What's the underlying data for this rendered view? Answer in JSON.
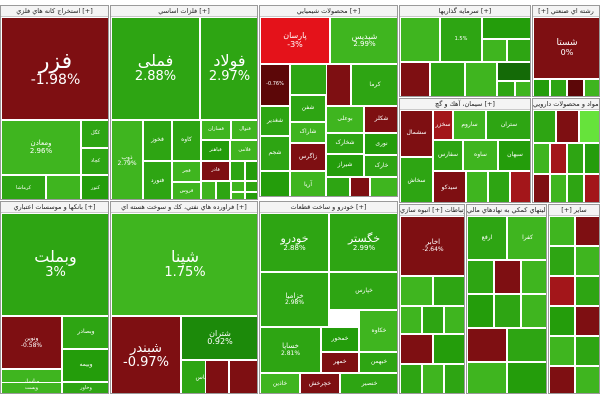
{
  "colors": {
    "light_green": "#3fb51f",
    "green": "#249d0b",
    "dark_green": "#146a07",
    "bright_green": "#66e33b",
    "dark_red": "#7e0f12",
    "red": "#a3161a",
    "bright_red": "#e4121a",
    "border": "#9a9a9a",
    "header_bg": "#f4f4f4"
  },
  "sectors": [
    {
      "title": "استخراج كانه هاي فلزي [+]",
      "tiles": [
        {
          "name": "فزر",
          "change": "-1.98%",
          "tone": "r2"
        },
        {
          "name": "ومعادن",
          "change": "2.96%",
          "tone": "g1"
        },
        {
          "name": "کگل",
          "change": "",
          "tone": "g2"
        },
        {
          "name": "کچاد",
          "change": "",
          "tone": "g2"
        },
        {
          "name": "کرماشا",
          "change": "",
          "tone": "g2"
        },
        {
          "name": "کنور",
          "change": "",
          "tone": "g3"
        },
        {
          "name": "",
          "change": "",
          "tone": "g1"
        },
        {
          "name": "",
          "change": "",
          "tone": "g2"
        },
        {
          "name": "",
          "change": "",
          "tone": "g1"
        }
      ]
    },
    {
      "title": "فلزات اساسي [+]",
      "tiles": [
        {
          "name": "فملی",
          "change": "2.88%",
          "tone": "g2"
        },
        {
          "name": "فولاد",
          "change": "2.97%",
          "tone": "g2"
        },
        {
          "name": "ذوب",
          "change": "2.79%",
          "tone": "g1"
        },
        {
          "name": "فخوز",
          "change": "",
          "tone": "g2"
        },
        {
          "name": "کاوه",
          "change": "",
          "tone": "g2"
        },
        {
          "name": "فسازان",
          "change": "",
          "tone": "g1"
        },
        {
          "name": "فنوال",
          "change": "",
          "tone": "g1"
        },
        {
          "name": "فباهنر",
          "change": "",
          "tone": "g3"
        },
        {
          "name": "فنورد",
          "change": "",
          "tone": "g2"
        },
        {
          "name": "فجر",
          "change": "",
          "tone": "g1"
        },
        {
          "name": "فلامی",
          "change": "",
          "tone": "g1"
        },
        {
          "name": "فروس",
          "change": "",
          "tone": "g1"
        },
        {
          "name": "فاذر",
          "change": "",
          "tone": "r2"
        },
        {
          "name": "",
          "change": "",
          "tone": "g2"
        },
        {
          "name": "",
          "change": "",
          "tone": "g3"
        },
        {
          "name": "",
          "change": "",
          "tone": "g1"
        },
        {
          "name": "",
          "change": "",
          "tone": "g2"
        },
        {
          "name": "",
          "change": "",
          "tone": "g1"
        },
        {
          "name": "",
          "change": "",
          "tone": "g2"
        },
        {
          "name": "",
          "change": "",
          "tone": "g1"
        },
        {
          "name": "",
          "change": "",
          "tone": "g3"
        },
        {
          "name": "",
          "change": "",
          "tone": "g2"
        }
      ]
    },
    {
      "title": "محصولات شيميايي [+]",
      "tiles": [
        {
          "name": "پارسان",
          "change": "-3%",
          "tone": "rb"
        },
        {
          "name": "شپدیس",
          "change": "2.99%",
          "tone": "g1"
        },
        {
          "name": "",
          "change": "-0.76%",
          "tone": "r3"
        },
        {
          "name": "کرما",
          "change": "",
          "tone": "g2"
        },
        {
          "name": "شفن",
          "change": "",
          "tone": "g2"
        },
        {
          "name": "بوعلی",
          "change": "",
          "tone": "g1"
        },
        {
          "name": "شاراک",
          "change": "",
          "tone": "g1"
        },
        {
          "name": "شکلر",
          "change": "",
          "tone": "r2"
        },
        {
          "name": "شخارک",
          "change": "",
          "tone": "g2"
        },
        {
          "name": "زاگرس",
          "change": "",
          "tone": "r2"
        },
        {
          "name": "نوری",
          "change": "",
          "tone": "g3"
        },
        {
          "name": "شغدیر",
          "change": "",
          "tone": "g2"
        },
        {
          "name": "شیراز",
          "change": "",
          "tone": "g3"
        },
        {
          "name": "خارک",
          "change": "",
          "tone": "g2"
        },
        {
          "name": "شجم",
          "change": "",
          "tone": "g2"
        },
        {
          "name": "آریا",
          "change": "",
          "tone": "g1"
        },
        {
          "name": "",
          "change": "",
          "tone": "g2"
        },
        {
          "name": "",
          "change": "",
          "tone": "r2"
        },
        {
          "name": "",
          "change": "",
          "tone": "g1"
        },
        {
          "name": "",
          "change": "",
          "tone": "g3"
        },
        {
          "name": "",
          "change": "",
          "tone": "g2"
        },
        {
          "name": "",
          "change": "",
          "tone": "r2"
        }
      ]
    },
    {
      "title": "سرمايه گذاريها [+]",
      "tiles": [
        {
          "name": "",
          "change": "",
          "tone": "g1"
        },
        {
          "name": "",
          "change": "1.5%",
          "tone": "g2"
        },
        {
          "name": "",
          "change": "",
          "tone": "g3"
        },
        {
          "name": "",
          "change": "",
          "tone": "g1"
        },
        {
          "name": "",
          "change": "",
          "tone": "g2"
        },
        {
          "name": "",
          "change": "",
          "tone": "r2"
        },
        {
          "name": "",
          "change": "",
          "tone": "g2"
        },
        {
          "name": "",
          "change": "",
          "tone": "g1"
        },
        {
          "name": "",
          "change": "",
          "tone": "dg"
        },
        {
          "name": "",
          "change": "",
          "tone": "g2"
        },
        {
          "name": "",
          "change": "",
          "tone": "g1"
        },
        {
          "name": "",
          "change": "",
          "tone": "r2"
        }
      ]
    },
    {
      "title": "[+] رشته اي صنعتي",
      "tiles": [
        {
          "name": "شستا",
          "change": "0%",
          "tone": "r2"
        },
        {
          "name": "",
          "change": "",
          "tone": "g2"
        },
        {
          "name": "",
          "change": "",
          "tone": "g1"
        },
        {
          "name": "",
          "change": "",
          "tone": "r2"
        },
        {
          "name": "",
          "change": "",
          "tone": "g3"
        },
        {
          "name": "",
          "change": "",
          "tone": "g2"
        },
        {
          "name": "",
          "change": "",
          "tone": "r3"
        },
        {
          "name": "",
          "change": "",
          "tone": "g1"
        }
      ]
    },
    {
      "title": "سيمان، آهك و گچ [+]",
      "tiles": [
        {
          "name": "ساروم",
          "change": "",
          "tone": "g1"
        },
        {
          "name": "سخزر",
          "change": "",
          "tone": "r1"
        },
        {
          "name": "ستران",
          "change": "",
          "tone": "g2"
        },
        {
          "name": "سفارس",
          "change": "",
          "tone": "g2"
        },
        {
          "name": "ساوه",
          "change": "",
          "tone": "g1"
        },
        {
          "name": "سبهان",
          "change": "",
          "tone": "g3"
        },
        {
          "name": "سشمال",
          "change": "",
          "tone": "r2"
        },
        {
          "name": "سخاش",
          "change": "",
          "tone": "g2"
        },
        {
          "name": "سیدکو",
          "change": "",
          "tone": "r2"
        },
        {
          "name": "",
          "change": "",
          "tone": "g1"
        },
        {
          "name": "",
          "change": "",
          "tone": "g2"
        },
        {
          "name": "",
          "change": "",
          "tone": "r1"
        },
        {
          "name": "",
          "change": "",
          "tone": "g1"
        },
        {
          "name": "",
          "change": "",
          "tone": "g2"
        },
        {
          "name": "",
          "change": "",
          "tone": "g3"
        },
        {
          "name": "",
          "change": "",
          "tone": "r2"
        },
        {
          "name": "",
          "change": "",
          "tone": "g1"
        },
        {
          "name": "",
          "change": "",
          "tone": "g2"
        }
      ]
    },
    {
      "title": "مواد و محصولات دارويي [+]",
      "tiles": [
        {
          "name": "",
          "change": "",
          "tone": "gb"
        },
        {
          "name": "",
          "change": "",
          "tone": "g2"
        },
        {
          "name": "",
          "change": "",
          "tone": "r2"
        },
        {
          "name": "",
          "change": "",
          "tone": "g1"
        },
        {
          "name": "",
          "change": "",
          "tone": "r1"
        },
        {
          "name": "",
          "change": "",
          "tone": "g2"
        },
        {
          "name": "",
          "change": "",
          "tone": "g3"
        },
        {
          "name": "",
          "change": "",
          "tone": "r2"
        },
        {
          "name": "",
          "change": "",
          "tone": "g1"
        },
        {
          "name": "",
          "change": "",
          "tone": "g2"
        },
        {
          "name": "",
          "change": "",
          "tone": "r1"
        },
        {
          "name": "",
          "change": "",
          "tone": "g1"
        },
        {
          "name": "",
          "change": "",
          "tone": "g3"
        },
        {
          "name": "",
          "change": "",
          "tone": "g2"
        },
        {
          "name": "",
          "change": "",
          "tone": "r2"
        },
        {
          "name": "",
          "change": "",
          "tone": "g1"
        },
        {
          "name": "",
          "change": "",
          "tone": "g2"
        },
        {
          "name": "",
          "change": "",
          "tone": "g3"
        },
        {
          "name": "",
          "change": "",
          "tone": "r2"
        },
        {
          "name": "",
          "change": "",
          "tone": "g1"
        }
      ]
    },
    {
      "title": "بانكها و موسسات اعتباري [+]",
      "tiles": [
        {
          "name": "وبملت",
          "change": "3%",
          "tone": "g2"
        },
        {
          "name": "وبصادر",
          "change": "",
          "tone": "g2"
        },
        {
          "name": "وبیمه",
          "change": "",
          "tone": "g3"
        },
        {
          "name": "وپاسار",
          "change": "",
          "tone": "g1"
        },
        {
          "name": "وتجارت",
          "change": "",
          "tone": "g2"
        },
        {
          "name": "وپست",
          "change": "",
          "tone": "g1"
        },
        {
          "name": "وخاور",
          "change": "",
          "tone": "g2"
        },
        {
          "name": "ونوین",
          "change": "-0.58%",
          "tone": "r2"
        },
        {
          "name": "",
          "change": "",
          "tone": "g1"
        },
        {
          "name": "",
          "change": "",
          "tone": "g2"
        },
        {
          "name": "",
          "change": "",
          "tone": "g1"
        }
      ]
    },
    {
      "title": "فراورده هاي نفتي، كك و سوخت هسته اي [+]",
      "tiles": [
        {
          "name": "شپنا",
          "change": "1.75%",
          "tone": "g1"
        },
        {
          "name": "شبندر",
          "change": "-0.97%",
          "tone": "r2"
        },
        {
          "name": "شتران",
          "change": "0.92%",
          "tone": "g4"
        },
        {
          "name": "شپاس",
          "change": "",
          "tone": "g2"
        },
        {
          "name": "شرانل",
          "change": "",
          "tone": "g2"
        },
        {
          "name": "",
          "change": "",
          "tone": "r2"
        },
        {
          "name": "",
          "change": "",
          "tone": "r2"
        },
        {
          "name": "",
          "change": "",
          "tone": "g1"
        },
        {
          "name": "",
          "change": "",
          "tone": "r3"
        },
        {
          "name": "",
          "change": "",
          "tone": "g2"
        },
        {
          "name": "",
          "change": "",
          "tone": "g1"
        }
      ]
    },
    {
      "title": "خودرو و ساخت قطعات [+]",
      "tiles": [
        {
          "name": "خودرو",
          "change": "2.88%",
          "tone": "g2"
        },
        {
          "name": "خگستر",
          "change": "2.99%",
          "tone": "g2"
        },
        {
          "name": "خزامیا",
          "change": "2.98%",
          "tone": "g2"
        },
        {
          "name": "خساپا",
          "change": "2.81%",
          "tone": "g2"
        },
        {
          "name": "خپارس",
          "change": "",
          "tone": "g2"
        },
        {
          "name": "خمحور",
          "change": "",
          "tone": "g3"
        },
        {
          "name": "خکاوه",
          "change": "",
          "tone": "g1"
        },
        {
          "name": "خمهر",
          "change": "",
          "tone": "r2"
        },
        {
          "name": "خبهمن",
          "change": "",
          "tone": "g2"
        },
        {
          "name": "خاذین",
          "change": "",
          "tone": "g1"
        },
        {
          "name": "خچرخش",
          "change": "",
          "tone": "r2"
        },
        {
          "name": "خنصیر",
          "change": "",
          "tone": "g2"
        },
        {
          "name": "",
          "change": "",
          "tone": "g1"
        },
        {
          "name": "",
          "change": "",
          "tone": "g3"
        },
        {
          "name": "",
          "change": "",
          "tone": "g2"
        },
        {
          "name": "",
          "change": "",
          "tone": "r2"
        },
        {
          "name": "",
          "change": "",
          "tone": "g1"
        },
        {
          "name": "",
          "change": "",
          "tone": "g2"
        },
        {
          "name": "",
          "change": "",
          "tone": "g3"
        },
        {
          "name": "",
          "change": "",
          "tone": "r2"
        }
      ]
    },
    {
      "title": "اطلاعات و ارتباطات [+] انبوه سازي",
      "tiles": [
        {
          "name": "اخابر",
          "change": "-2.64%",
          "tone": "r2"
        },
        {
          "name": "",
          "change": "",
          "tone": "g1"
        },
        {
          "name": "",
          "change": "",
          "tone": "g2"
        },
        {
          "name": "",
          "change": "",
          "tone": "g1"
        },
        {
          "name": "",
          "change": "",
          "tone": "g2"
        },
        {
          "name": "",
          "change": "",
          "tone": "g1"
        },
        {
          "name": "",
          "change": "",
          "tone": "r2"
        },
        {
          "name": "",
          "change": "",
          "tone": "g3"
        },
        {
          "name": "",
          "change": "",
          "tone": "g2"
        },
        {
          "name": "",
          "change": "",
          "tone": "g1"
        },
        {
          "name": "",
          "change": "",
          "tone": "g2"
        },
        {
          "name": "",
          "change": "",
          "tone": "g1"
        },
        {
          "name": "",
          "change": "",
          "tone": "r1"
        },
        {
          "name": "",
          "change": "",
          "tone": "g2"
        }
      ]
    },
    {
      "title": "فعاليتهاي كمكي به نهادهاي مالي [+]",
      "tiles": [
        {
          "name": "ارفع",
          "change": "",
          "tone": "g2"
        },
        {
          "name": "کفرا",
          "change": "",
          "tone": "g1"
        },
        {
          "name": "",
          "change": "",
          "tone": "g2"
        },
        {
          "name": "",
          "change": "",
          "tone": "r2"
        },
        {
          "name": "",
          "change": "",
          "tone": "g1"
        },
        {
          "name": "",
          "change": "",
          "tone": "g3"
        },
        {
          "name": "",
          "change": "",
          "tone": "g2"
        },
        {
          "name": "",
          "change": "",
          "tone": "g1"
        },
        {
          "name": "",
          "change": "",
          "tone": "r2"
        },
        {
          "name": "",
          "change": "",
          "tone": "g2"
        },
        {
          "name": "",
          "change": "",
          "tone": "g1"
        },
        {
          "name": "",
          "change": "",
          "tone": "g3"
        }
      ]
    },
    {
      "title": "[+] ساير",
      "tiles": [
        {
          "name": "",
          "change": "",
          "tone": "g1"
        },
        {
          "name": "",
          "change": "",
          "tone": "r2"
        },
        {
          "name": "",
          "change": "",
          "tone": "g2"
        },
        {
          "name": "",
          "change": "",
          "tone": "g1"
        },
        {
          "name": "",
          "change": "",
          "tone": "r1"
        },
        {
          "name": "",
          "change": "",
          "tone": "g2"
        },
        {
          "name": "",
          "change": "",
          "tone": "g3"
        },
        {
          "name": "",
          "change": "",
          "tone": "r2"
        },
        {
          "name": "",
          "change": "",
          "tone": "g1"
        },
        {
          "name": "",
          "change": "",
          "tone": "g2"
        },
        {
          "name": "",
          "change": "",
          "tone": "r2"
        },
        {
          "name": "",
          "change": "",
          "tone": "g1"
        },
        {
          "name": "",
          "change": "",
          "tone": "g2"
        },
        {
          "name": "",
          "change": "",
          "tone": "r2"
        },
        {
          "name": "",
          "change": "",
          "tone": "g3"
        },
        {
          "name": "",
          "change": "",
          "tone": "g1"
        }
      ]
    }
  ]
}
